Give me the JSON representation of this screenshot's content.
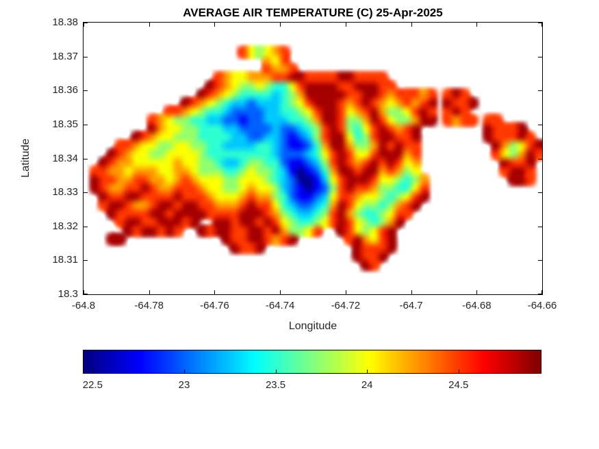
{
  "figure": {
    "background": "#ffffff"
  },
  "chart_data": {
    "type": "heatmap",
    "title": "AVERAGE AIR TEMPERATURE (C) 25-Apr-2025",
    "date": "25-Apr-2025",
    "units": "C",
    "xlabel": "Longitude",
    "ylabel": "Latitude",
    "xlim": [
      -64.8,
      -64.66
    ],
    "ylim": [
      18.3,
      18.38
    ],
    "grid_lines": "off",
    "xticks": {
      "values": [
        -64.8,
        -64.78,
        -64.76,
        -64.74,
        -64.72,
        -64.7,
        -64.68,
        -64.66
      ],
      "labels": [
        "-64.8",
        "-64.78",
        "-64.76",
        "-64.74",
        "-64.72",
        "-64.7",
        "-64.68",
        "-64.66"
      ]
    },
    "yticks": {
      "values": [
        18.3,
        18.31,
        18.32,
        18.33,
        18.34,
        18.35,
        18.36,
        18.37,
        18.38
      ],
      "labels": [
        "18.3",
        "18.31",
        "18.32",
        "18.33",
        "18.34",
        "18.35",
        "18.36",
        "18.37",
        "18.38"
      ]
    },
    "colormap": "jet",
    "colorbar": {
      "orientation": "horizontal",
      "range": [
        22.45,
        24.95
      ],
      "ticks": [
        22.5,
        23,
        23.5,
        24,
        24.5
      ],
      "tick_labels": [
        "22.5",
        "23",
        "23.5",
        "24",
        "24.5"
      ]
    },
    "grid": {
      "encoding_note": "Each character is one cell; value_map gives temperature in C; '.' = no data (ocean). Row 0 is the northernmost row.",
      "lon_start": -64.8,
      "lon_step": 0.0025,
      "lat_start": 18.375,
      "lat_step": -0.0025,
      "ncols": 56,
      "nrows": 28,
      "ocean_char": ".",
      "value_map": {
        "0": 22.5,
        "1": 22.75,
        "2": 23.0,
        "3": 23.25,
        "4": 23.5,
        "5": 23.75,
        "6": 24.0,
        "7": 24.25,
        "8": 24.5,
        "9": 24.85
      },
      "rows": [
        "........................................................",
        "...................865678...............................",
        "......................768...............................",
        "......................8778..............................",
        "................876677788998888998888...................",
        "...............98765565446899998899988..................",
        "..............98765444434579999988998788878.898.........",
        "............9876543323334568999878987678789.9889........",
        "..........887654432222334456899867897556898.898.........",
        "........87655443322122333445799855798655799.8788.88.....",
        "........976655444332222322345898546898789........98889..",
        "......98766555444433223321235899645899889........988898.",
        "....8876655665544333344321124799755798988.........975689",
        "...98766556666544444444322234689866899978.........865798",
        "..987766666766554334554421123589878989867..........9889.",
        ".8877677766776555445655431012479989978756..........8998.",
        ".98877887767876665566654320013689998665457..........998.",
        ".98778898778887665567665321012589887554468..............",
        "..9889988889888766678775421123688766545689..............",
        "..899877899899887778988643223479865545789...............",
        "...9888899899998888999875433458975445688................",
        "....8998899989..99899898654456898654579.................",
        ".....9899898..989988998975568..9865689..................",
        "...99............988998789......897689..................",
        "..................9889...........98889..................",
        ".................................9889...................",
        "..................................98....................",
        "........................................................"
      ]
    }
  }
}
